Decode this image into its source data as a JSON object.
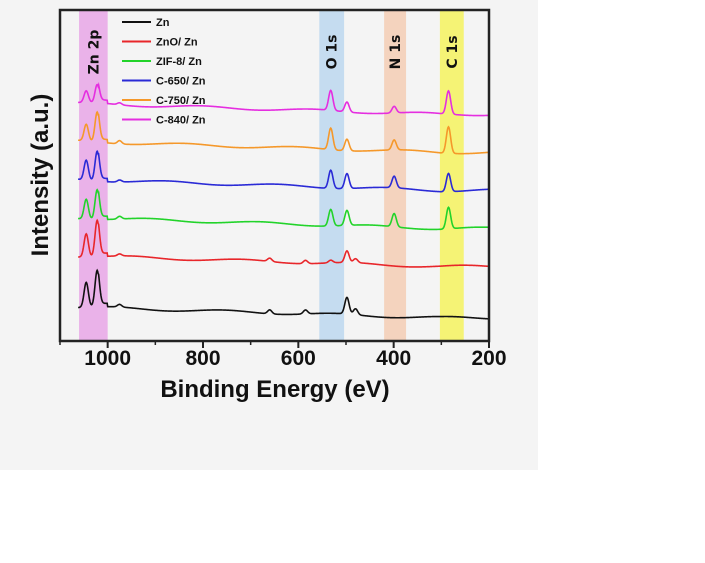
{
  "chart_data": {
    "type": "line",
    "xlabel": "Binding Energy (eV)",
    "ylabel": "Intensity (a.u.)",
    "xlim": [
      1100,
      200
    ],
    "x_reversed": true,
    "x_ticks": [
      1000,
      800,
      600,
      400,
      200
    ],
    "x_tick_labels": [
      "1000",
      "800",
      "600",
      "400",
      "200"
    ],
    "y_ticks_shown": false,
    "grid": false,
    "legend": {
      "placement": "top-left",
      "entries": [
        "Zn",
        "ZnO/ Zn",
        "ZIF-8/ Zn",
        "C-650/ Zn",
        "C-750/ Zn",
        "C-840/ Zn"
      ]
    },
    "bands": [
      {
        "label": "Zn 2p",
        "range": [
          1060,
          1000
        ],
        "color": "#e8a6e6"
      },
      {
        "label": "O 1s",
        "range": [
          556,
          504
        ],
        "color": "#bcd7ee"
      },
      {
        "label": "N 1s",
        "range": [
          420,
          374
        ],
        "color": "#f3cdb4"
      },
      {
        "label": "C 1s",
        "range": [
          303,
          253
        ],
        "color": "#f5f25e"
      }
    ],
    "peak_positions": [
      1045,
      1022,
      975,
      660,
      585,
      532,
      498,
      480,
      399,
      285
    ],
    "series": [
      {
        "name": "Zn",
        "color": "#111111",
        "offset": 0.0,
        "peaks": [
          [
            1045,
            0.075
          ],
          [
            1022,
            0.11
          ],
          [
            975,
            0.008
          ],
          [
            660,
            0.012
          ],
          [
            585,
            0.012
          ],
          [
            498,
            0.05
          ],
          [
            480,
            0.018
          ]
        ]
      },
      {
        "name": "ZnO/ Zn",
        "color": "#e8262a",
        "offset": 0.155,
        "peaks": [
          [
            1045,
            0.07
          ],
          [
            1022,
            0.11
          ],
          [
            975,
            0.006
          ],
          [
            660,
            0.01
          ],
          [
            585,
            0.01
          ],
          [
            532,
            0.008
          ],
          [
            498,
            0.035
          ],
          [
            480,
            0.012
          ]
        ]
      },
      {
        "name": "ZIF-8/ Zn",
        "color": "#22d32a",
        "offset": 0.27,
        "peaks": [
          [
            1045,
            0.06
          ],
          [
            1022,
            0.09
          ],
          [
            975,
            0.008
          ],
          [
            532,
            0.05
          ],
          [
            498,
            0.045
          ],
          [
            399,
            0.04
          ],
          [
            285,
            0.065
          ]
        ]
      },
      {
        "name": "C-650/ Zn",
        "color": "#2a2ad6",
        "offset": 0.385,
        "peaks": [
          [
            1045,
            0.06
          ],
          [
            1022,
            0.09
          ],
          [
            975,
            0.006
          ],
          [
            532,
            0.055
          ],
          [
            498,
            0.045
          ],
          [
            399,
            0.035
          ],
          [
            285,
            0.055
          ]
        ]
      },
      {
        "name": "C-750/ Zn",
        "color": "#f5982a",
        "offset": 0.5,
        "peaks": [
          [
            1045,
            0.05
          ],
          [
            1022,
            0.09
          ],
          [
            975,
            0.01
          ],
          [
            532,
            0.065
          ],
          [
            498,
            0.035
          ],
          [
            399,
            0.03
          ],
          [
            285,
            0.08
          ]
        ]
      },
      {
        "name": "C-840/ Zn",
        "color": "#e52ee0",
        "offset": 0.615,
        "peaks": [
          [
            1045,
            0.035
          ],
          [
            1022,
            0.055
          ],
          [
            975,
            0.006
          ],
          [
            532,
            0.06
          ],
          [
            498,
            0.03
          ],
          [
            399,
            0.02
          ],
          [
            285,
            0.07
          ]
        ]
      }
    ]
  }
}
